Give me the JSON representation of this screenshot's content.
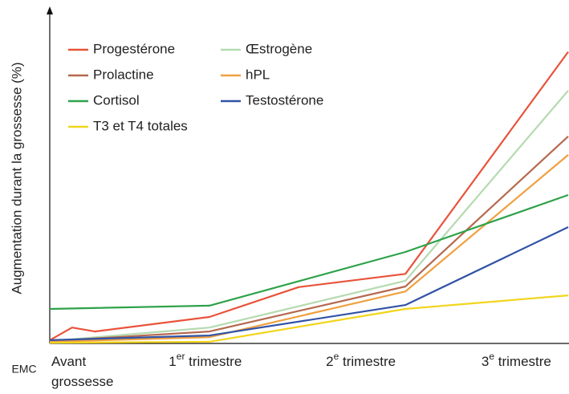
{
  "chart_data": {
    "type": "line",
    "y_label": "Augmentation durant la grossesse (%)",
    "logo": "EMC",
    "xlim": [
      0,
      10
    ],
    "ylim": [
      0,
      100
    ],
    "xticks": [
      {
        "value": 0,
        "label": "Avant grossesse"
      },
      {
        "value": 3,
        "label": "1er trimestre"
      },
      {
        "value": 6,
        "label": "2e trimestre"
      },
      {
        "value": 9,
        "label": "3e trimestre"
      }
    ],
    "series": [
      {
        "name": "Progestérone",
        "color": "#e8533a",
        "x": [
          0,
          0.43,
          0.87,
          3.08,
          4.8,
          6.86,
          10
        ],
        "values": [
          1,
          4.8,
          3.6,
          8,
          17,
          21,
          88
        ]
      },
      {
        "name": "Œstrogène",
        "color": "#b5dab0",
        "x": [
          0,
          3.08,
          6.86,
          10
        ],
        "values": [
          0.7,
          4.8,
          18.9,
          76.3
        ]
      },
      {
        "name": "Prolactine",
        "color": "#b5694f",
        "x": [
          0,
          3.08,
          6.86,
          10
        ],
        "values": [
          0.7,
          3.6,
          17.2,
          62.5
        ]
      },
      {
        "name": "hPL",
        "color": "#f0a040",
        "x": [
          0,
          3.08,
          6.86,
          10
        ],
        "values": [
          0.5,
          1.9,
          15.7,
          56.9
        ]
      },
      {
        "name": "Cortisol",
        "color": "#2ea24a",
        "x": [
          0,
          3.08,
          6.86,
          10
        ],
        "values": [
          10.4,
          11.4,
          27.6,
          44.8
        ]
      },
      {
        "name": "Testostérone",
        "color": "#3153a6",
        "x": [
          0,
          3.08,
          6.86,
          10
        ],
        "values": [
          1,
          2.4,
          11.6,
          35.1
        ]
      },
      {
        "name": "T3 et T4 totales",
        "color": "#f2d51c",
        "x": [
          0,
          3.08,
          6.86,
          10
        ],
        "values": [
          0.2,
          0.5,
          10.4,
          14.5
        ]
      }
    ]
  }
}
